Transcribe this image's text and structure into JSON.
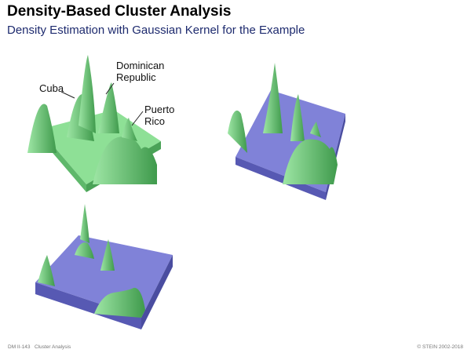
{
  "header": {
    "title": "Density-Based Cluster Analysis",
    "subtitle": "Density Estimation with Gaussian Kernel for the Example"
  },
  "annotations": {
    "dominican_line1": "Dominican",
    "dominican_line2": "Republic",
    "cuba": "Cuba",
    "puerto_line1": "Puerto",
    "puerto_line2": "Rico"
  },
  "footer": {
    "slide_id": "DM II-143",
    "section": "Cluster Analysis",
    "copyright": "© STEIN 2002-2018"
  },
  "colors": {
    "density_green": "#7fd68a",
    "density_green_dark": "#3f9a4c",
    "plane_blue": "#7f81d8",
    "plane_blue_dark": "#4f52a8"
  }
}
